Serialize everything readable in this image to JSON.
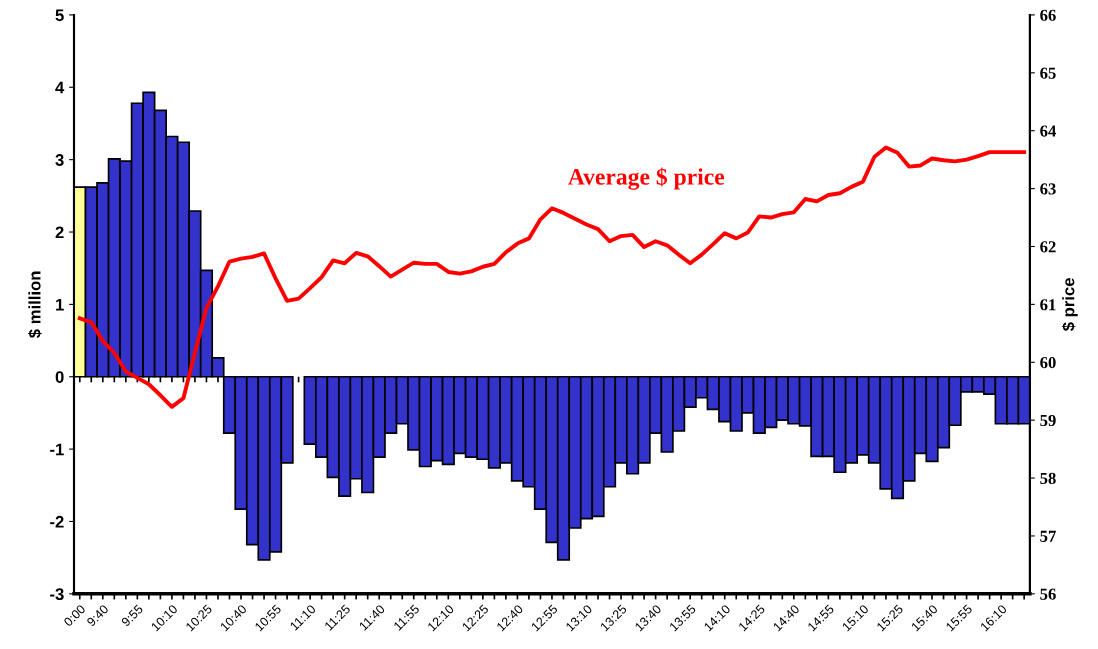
{
  "chart_data": {
    "type": "bar",
    "categories": [
      "0:00",
      null,
      "9:40",
      null,
      null,
      "9:55",
      null,
      null,
      "10:10",
      null,
      null,
      "10:25",
      null,
      null,
      "10:40",
      null,
      null,
      "10:55",
      null,
      null,
      "11:10",
      null,
      null,
      "11:25",
      null,
      null,
      "11:40",
      null,
      null,
      "11:55",
      null,
      null,
      "12:10",
      null,
      null,
      "12:25",
      null,
      null,
      "12:40",
      null,
      null,
      "12:55",
      null,
      null,
      "13:10",
      null,
      null,
      "13:25",
      null,
      null,
      "13:40",
      null,
      null,
      "13:55",
      null,
      null,
      "14:10",
      null,
      null,
      "14:25",
      null,
      null,
      "14:40",
      null,
      null,
      "14:55",
      null,
      null,
      "15:10",
      null,
      null,
      "15:25",
      null,
      null,
      "15:40",
      null,
      null,
      "15:55",
      null,
      null,
      "16:10",
      null,
      null
    ],
    "series": [
      {
        "colors": [
          "#ffff99",
          "#3333cc",
          "#3333cc",
          "#3333cc",
          "#3333cc",
          "#3333cc",
          "#3333cc",
          "#3333cc",
          "#3333cc",
          "#3333cc",
          "#3333cc",
          "#3333cc",
          "#3333cc",
          "#3333cc",
          "#3333cc",
          "#3333cc",
          "#3333cc",
          "#3333cc",
          "#3333cc",
          "#3333cc",
          "#3333cc",
          "#3333cc",
          "#3333cc",
          "#3333cc",
          "#3333cc",
          "#3333cc",
          "#3333cc",
          "#3333cc",
          "#3333cc",
          "#3333cc",
          "#3333cc",
          "#3333cc",
          "#3333cc",
          "#3333cc",
          "#3333cc",
          "#3333cc",
          "#3333cc",
          "#3333cc",
          "#3333cc",
          "#3333cc",
          "#3333cc",
          "#3333cc",
          "#3333cc",
          "#3333cc",
          "#3333cc",
          "#3333cc",
          "#3333cc",
          "#3333cc",
          "#3333cc",
          "#3333cc",
          "#3333cc",
          "#3333cc",
          "#3333cc",
          "#3333cc",
          "#3333cc",
          "#3333cc",
          "#3333cc",
          "#3333cc",
          "#3333cc",
          "#3333cc",
          "#3333cc",
          "#3333cc",
          "#3333cc",
          "#3333cc",
          "#3333cc",
          "#3333cc",
          "#3333cc",
          "#3333cc",
          "#3333cc",
          "#3333cc",
          "#3333cc",
          "#3333cc",
          "#3333cc",
          "#3333cc",
          "#3333cc",
          "#3333cc",
          "#3333cc",
          "#3333cc",
          "#3333cc",
          "#3333cc",
          "#3333cc",
          "#3333cc",
          "#3333cc"
        ],
        "values": [
          2.62,
          2.62,
          2.68,
          3.01,
          2.98,
          3.78,
          3.93,
          3.68,
          3.32,
          3.24,
          2.29,
          1.47,
          0.26,
          -0.78,
          -1.83,
          -2.32,
          -2.53,
          -2.42,
          -1.19,
          null,
          -0.93,
          -1.11,
          -1.39,
          -1.65,
          -1.41,
          -1.6,
          -1.11,
          -0.78,
          -0.65,
          -1.01,
          -1.24,
          -1.16,
          -1.21,
          -1.06,
          -1.11,
          -1.14,
          -1.26,
          -1.19,
          -1.44,
          -1.52,
          -1.83,
          -2.29,
          -2.53,
          -2.09,
          -1.96,
          -1.93,
          -1.52,
          -1.19,
          -1.34,
          -1.19,
          -0.78,
          -1.04,
          -0.75,
          -0.42,
          -0.29,
          -0.45,
          -0.62,
          -0.75,
          -0.5,
          -0.78,
          -0.7,
          -0.6,
          -0.65,
          -0.68,
          -1.1,
          -1.1,
          -1.32,
          -1.19,
          -1.08,
          -1.19,
          -1.55,
          -1.68,
          -1.44,
          -1.06,
          -1.17,
          -0.98,
          -0.67,
          -0.21,
          -0.21,
          -0.24,
          -0.65,
          -0.65,
          -0.65
        ]
      },
      {
        "type": "line",
        "axis": "y2",
        "name": "Average $ price",
        "color": "#ff0000",
        "values": [
          60.76,
          60.69,
          60.37,
          60.16,
          59.84,
          59.73,
          59.62,
          59.43,
          59.23,
          59.38,
          60.17,
          60.94,
          61.31,
          61.74,
          61.79,
          61.82,
          61.88,
          61.45,
          61.06,
          61.1,
          61.28,
          61.47,
          61.76,
          61.71,
          61.89,
          61.83,
          61.66,
          61.48,
          61.6,
          61.72,
          61.7,
          61.7,
          61.56,
          61.53,
          61.57,
          61.65,
          61.7,
          61.9,
          62.05,
          62.14,
          62.47,
          62.66,
          62.58,
          62.48,
          62.38,
          62.3,
          62.09,
          62.18,
          62.2,
          61.99,
          62.09,
          62.02,
          61.86,
          61.71,
          61.86,
          62.04,
          62.23,
          62.14,
          62.24,
          62.52,
          62.5,
          62.56,
          62.59,
          62.82,
          62.78,
          62.89,
          62.92,
          63.03,
          63.12,
          63.55,
          63.71,
          63.62,
          63.38,
          63.4,
          63.52,
          63.49,
          63.47,
          63.5,
          63.56,
          63.63,
          63.63,
          63.63,
          63.63
        ]
      }
    ],
    "ylabel": "$ million",
    "y2label": "$ price",
    "ylim": [
      -3,
      5
    ],
    "yticks": [
      -3,
      -2,
      -1,
      0,
      1,
      2,
      3,
      4,
      5
    ],
    "y2lim": [
      56,
      66
    ],
    "y2ticks": [
      56,
      57,
      58,
      59,
      60,
      61,
      62,
      63,
      64,
      65,
      66
    ],
    "grid": false,
    "legend": false
  }
}
